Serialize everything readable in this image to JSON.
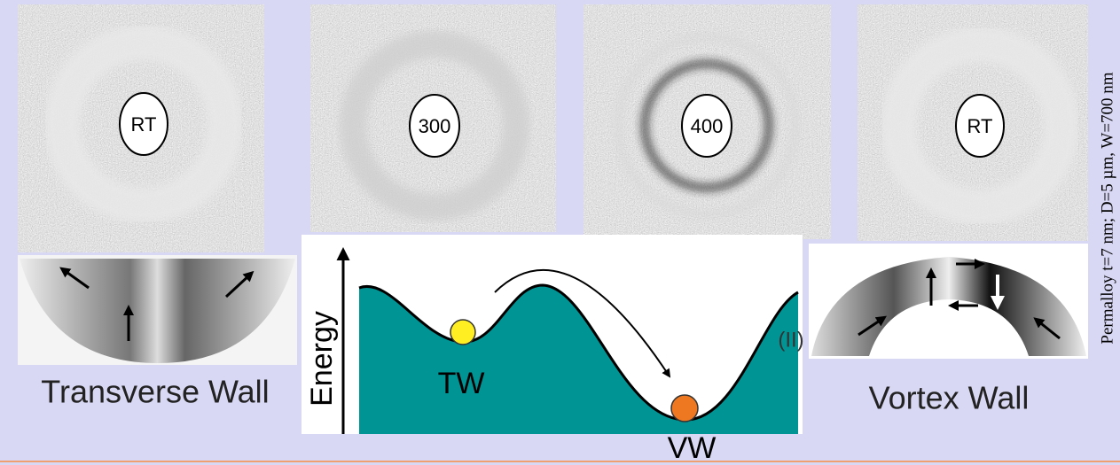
{
  "panels": [
    {
      "label": "RT"
    },
    {
      "label": "300"
    },
    {
      "label": "400"
    },
    {
      "label": "RT"
    }
  ],
  "walls": {
    "left": "Transverse Wall",
    "right": "Vortex Wall"
  },
  "energy_diagram": {
    "axis_label": "Energy",
    "left_state": "TW",
    "right_state": "VW",
    "region": "(II)"
  },
  "caption": "Permalloy t=7 nm; D=5 µm, W=700 nm"
}
